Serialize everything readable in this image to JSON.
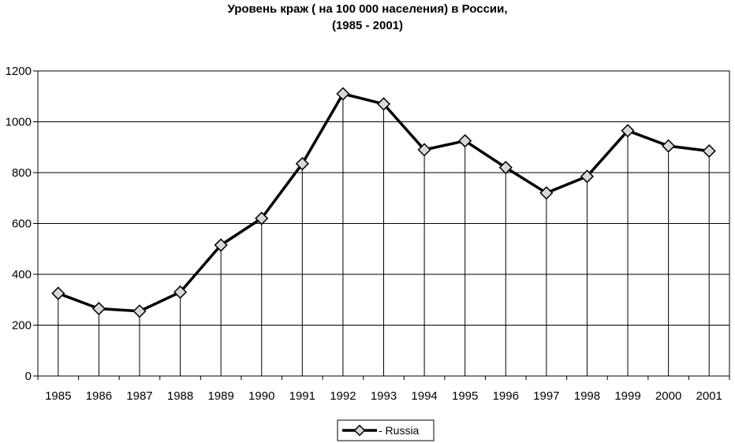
{
  "chart_data": {
    "type": "line",
    "title": "Уровень краж ( на 100 000 населения) в России,",
    "subtitle": "(1985 - 2001)",
    "xlabel": "",
    "ylabel": "",
    "categories": [
      "1985",
      "1986",
      "1987",
      "1988",
      "1989",
      "1990",
      "1991",
      "1992",
      "1993",
      "1994",
      "1995",
      "1996",
      "1997",
      "1998",
      "1999",
      "2000",
      "2001"
    ],
    "series": [
      {
        "name": "Russia",
        "values": [
          325,
          265,
          255,
          330,
          515,
          620,
          835,
          1110,
          1070,
          890,
          925,
          820,
          720,
          785,
          965,
          905,
          885
        ]
      }
    ],
    "legend_label": "- Russia",
    "legend_position": "bottom",
    "ylim": [
      0,
      1200
    ],
    "yticks": [
      0,
      200,
      400,
      600,
      800,
      1000,
      1200
    ],
    "grid": true,
    "drop_lines": true,
    "colors": {
      "line": "#000000",
      "marker_fill": "#d8d8d8",
      "grid": "#000000",
      "background": "#ffffff"
    }
  }
}
